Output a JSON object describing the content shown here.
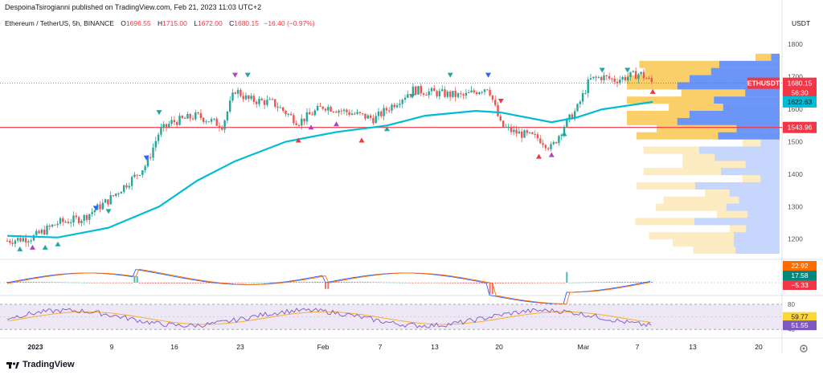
{
  "publish_line": "DespoinaTsirogianni published on TradingView.com, Feb 21, 2023 11:03 UTC+2",
  "legend": {
    "symbol": "Ethereum / TetherUS, 5h, BINANCE",
    "open_label": "O",
    "open": "1696.55",
    "high_label": "H",
    "high": "1715.00",
    "low_label": "L",
    "low": "1672.00",
    "close_label": "C",
    "close": "1680.15",
    "change": "−16.40 (−0.97%)"
  },
  "currency": "USDT",
  "footer_brand": "TradingView",
  "colors": {
    "up": "#26a69a",
    "down": "#ef5350",
    "ma": "#00bcd4",
    "support_line": "#f23645",
    "rsi_band": "#ede7f6",
    "rsi_line": "#7e57c2",
    "vp_up": "#5b8af5",
    "vp_down": "#f9c74f"
  },
  "chart_data": [
    {
      "type": "candlestick",
      "title": "Ethereum / TetherUS, 5h, BINANCE",
      "ylabel": "USDT",
      "ylim": [
        1140,
        1850
      ],
      "y_ticks": [
        1200,
        1300,
        1400,
        1500,
        1600,
        1700,
        1800
      ],
      "x_ticks": [
        "2023",
        "9",
        "16",
        "23",
        "Feb",
        "7",
        "13",
        "20",
        "Mar",
        "7",
        "13",
        "20"
      ],
      "price_labels": [
        {
          "name": "ETHUSDT",
          "value": "1680.15",
          "sub": "56:30"
        },
        {
          "name": "MA",
          "value": "1622.63"
        },
        {
          "name": "Support",
          "value": "1543.96"
        }
      ],
      "support_level": 1543.96,
      "close_path": [
        [
          "Jan 1",
          1195
        ],
        [
          "Jan 3",
          1205
        ],
        [
          "Jan 5",
          1250
        ],
        [
          "Jan 7",
          1265
        ],
        [
          "Jan 9",
          1320
        ],
        [
          "Jan 11",
          1390
        ],
        [
          "Jan 12",
          1430
        ],
        [
          "Jan 13",
          1530
        ],
        [
          "Jan 14",
          1560
        ],
        [
          "Jan 16",
          1580
        ],
        [
          "Jan 18",
          1550
        ],
        [
          "Jan 19",
          1660
        ],
        [
          "Jan 20",
          1630
        ],
        [
          "Jan 22",
          1620
        ],
        [
          "Jan 24",
          1560
        ],
        [
          "Jan 26",
          1610
        ],
        [
          "Jan 28",
          1590
        ],
        [
          "Jan 30",
          1570
        ],
        [
          "Jan 31",
          1600
        ],
        [
          "Feb 2",
          1660
        ],
        [
          "Feb 4",
          1650
        ],
        [
          "Feb 6",
          1640
        ],
        [
          "Feb 8",
          1670
        ],
        [
          "Feb 9",
          1550
        ],
        [
          "Feb 10",
          1530
        ],
        [
          "Feb 12",
          1510
        ],
        [
          "Feb 13",
          1480
        ],
        [
          "Feb 14",
          1550
        ],
        [
          "Feb 15",
          1600
        ],
        [
          "Feb 16",
          1690
        ],
        [
          "Feb 17",
          1700
        ],
        [
          "Feb 18",
          1690
        ],
        [
          "Feb 19",
          1700
        ],
        [
          "Feb 20",
          1710
        ],
        [
          "Feb 21",
          1680
        ]
      ],
      "ma_path": [
        [
          "Jan 1",
          1210
        ],
        [
          "Jan 5",
          1205
        ],
        [
          "Jan 9",
          1235
        ],
        [
          "Jan 13",
          1300
        ],
        [
          "Jan 16",
          1380
        ],
        [
          "Jan 19",
          1440
        ],
        [
          "Jan 23",
          1500
        ],
        [
          "Jan 27",
          1530
        ],
        [
          "Jan 31",
          1550
        ],
        [
          "Feb 3",
          1580
        ],
        [
          "Feb 7",
          1595
        ],
        [
          "Feb 9",
          1590
        ],
        [
          "Feb 13",
          1560
        ],
        [
          "Feb 15",
          1575
        ],
        [
          "Feb 17",
          1600
        ],
        [
          "Feb 21",
          1622.63
        ]
      ]
    },
    {
      "type": "bar",
      "name": "MACD",
      "labels": [
        "22.92",
        "17.58",
        "−5.33"
      ]
    },
    {
      "type": "line",
      "name": "RSI",
      "ylim": [
        30,
        85
      ],
      "band": [
        40,
        80
      ],
      "y_ticks": [
        40,
        80
      ],
      "labels": [
        "59.77",
        "51.55"
      ]
    }
  ]
}
